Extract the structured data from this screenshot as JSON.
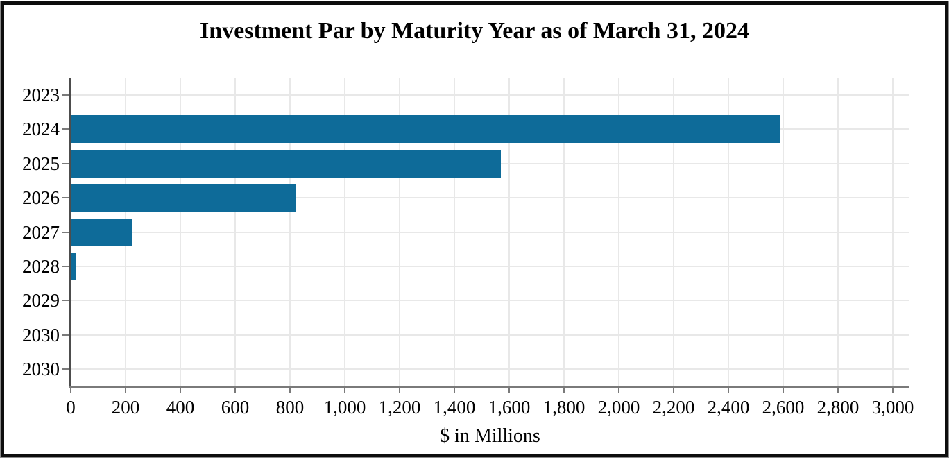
{
  "chart_data": {
    "type": "bar",
    "orientation": "horizontal",
    "title": "Investment Par by Maturity Year as of March 31, 2024",
    "categories": [
      "2023",
      "2024",
      "2025",
      "2026",
      "2027",
      "2028",
      "2029",
      "2030",
      "2030"
    ],
    "values": [
      0,
      2590,
      1570,
      820,
      225,
      18,
      0,
      0,
      0
    ],
    "series_name": "Investment Par",
    "xlabel": "$ in Millions",
    "ylabel": "",
    "xlim": [
      0,
      3060
    ],
    "x_ticks": [
      0,
      200,
      400,
      600,
      800,
      1000,
      1200,
      1400,
      1600,
      1800,
      2000,
      2200,
      2400,
      2600,
      2800,
      3000
    ],
    "x_tick_labels": [
      "0",
      "200",
      "400",
      "600",
      "800",
      "1,000",
      "1,200",
      "1,400",
      "1,600",
      "1,800",
      "2,000",
      "2,200",
      "2,400",
      "2,600",
      "2,800",
      "3,000"
    ],
    "grid": true,
    "legend": false
  },
  "colors": {
    "bar": "#0e6b99",
    "gridline": "#e8e8e8",
    "y_axis_line": "#4d4d4d",
    "x_axis_line": "#7a7a7a",
    "tick": "#7a7a7a",
    "title": "#000000",
    "frame": "#0d0d0d"
  }
}
